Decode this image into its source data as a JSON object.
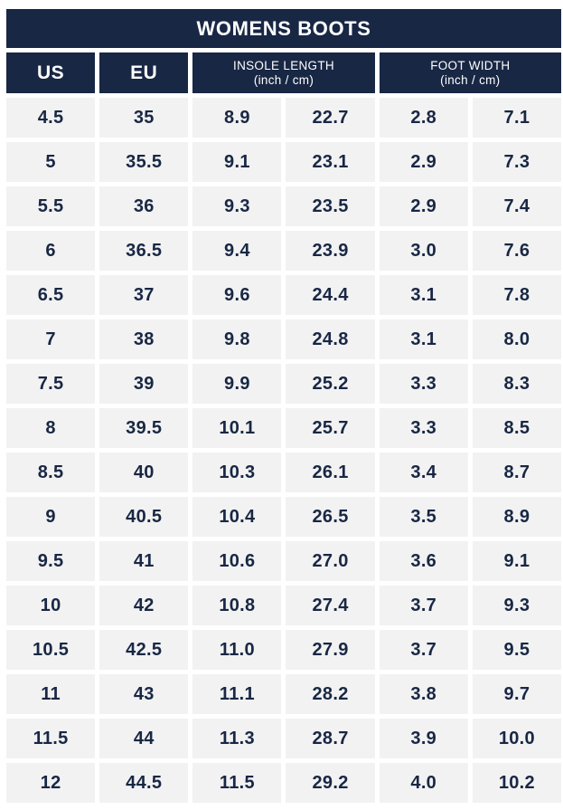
{
  "title": "WOMENS BOOTS",
  "colors": {
    "navy": "#182744",
    "cell_background": "#F2F2F2",
    "page_background": "#FFFFFF",
    "header_text": "#FFFFFF",
    "cell_text": "#182744"
  },
  "header": {
    "us": "US",
    "eu": "EU",
    "insole": {
      "label": "INSOLE LENGTH",
      "sub": "(inch / cm)"
    },
    "foot": {
      "label": "FOOT WIDTH",
      "sub": "(inch / cm)"
    }
  },
  "chart_data": {
    "type": "table",
    "title": "WOMENS BOOTS",
    "columns": [
      "US",
      "EU",
      "INSOLE LENGTH (inch)",
      "INSOLE LENGTH (cm)",
      "FOOT WIDTH (inch)",
      "FOOT WIDTH (cm)"
    ],
    "rows": [
      [
        "4.5",
        "35",
        "8.9",
        "22.7",
        "2.8",
        "7.1"
      ],
      [
        "5",
        "35.5",
        "9.1",
        "23.1",
        "2.9",
        "7.3"
      ],
      [
        "5.5",
        "36",
        "9.3",
        "23.5",
        "2.9",
        "7.4"
      ],
      [
        "6",
        "36.5",
        "9.4",
        "23.9",
        "3.0",
        "7.6"
      ],
      [
        "6.5",
        "37",
        "9.6",
        "24.4",
        "3.1",
        "7.8"
      ],
      [
        "7",
        "38",
        "9.8",
        "24.8",
        "3.1",
        "8.0"
      ],
      [
        "7.5",
        "39",
        "9.9",
        "25.2",
        "3.3",
        "8.3"
      ],
      [
        "8",
        "39.5",
        "10.1",
        "25.7",
        "3.3",
        "8.5"
      ],
      [
        "8.5",
        "40",
        "10.3",
        "26.1",
        "3.4",
        "8.7"
      ],
      [
        "9",
        "40.5",
        "10.4",
        "26.5",
        "3.5",
        "8.9"
      ],
      [
        "9.5",
        "41",
        "10.6",
        "27.0",
        "3.6",
        "9.1"
      ],
      [
        "10",
        "42",
        "10.8",
        "27.4",
        "3.7",
        "9.3"
      ],
      [
        "10.5",
        "42.5",
        "11.0",
        "27.9",
        "3.7",
        "9.5"
      ],
      [
        "11",
        "43",
        "11.1",
        "28.2",
        "3.8",
        "9.7"
      ],
      [
        "11.5",
        "44",
        "11.3",
        "28.7",
        "3.9",
        "10.0"
      ],
      [
        "12",
        "44.5",
        "11.5",
        "29.2",
        "4.0",
        "10.2"
      ]
    ]
  }
}
